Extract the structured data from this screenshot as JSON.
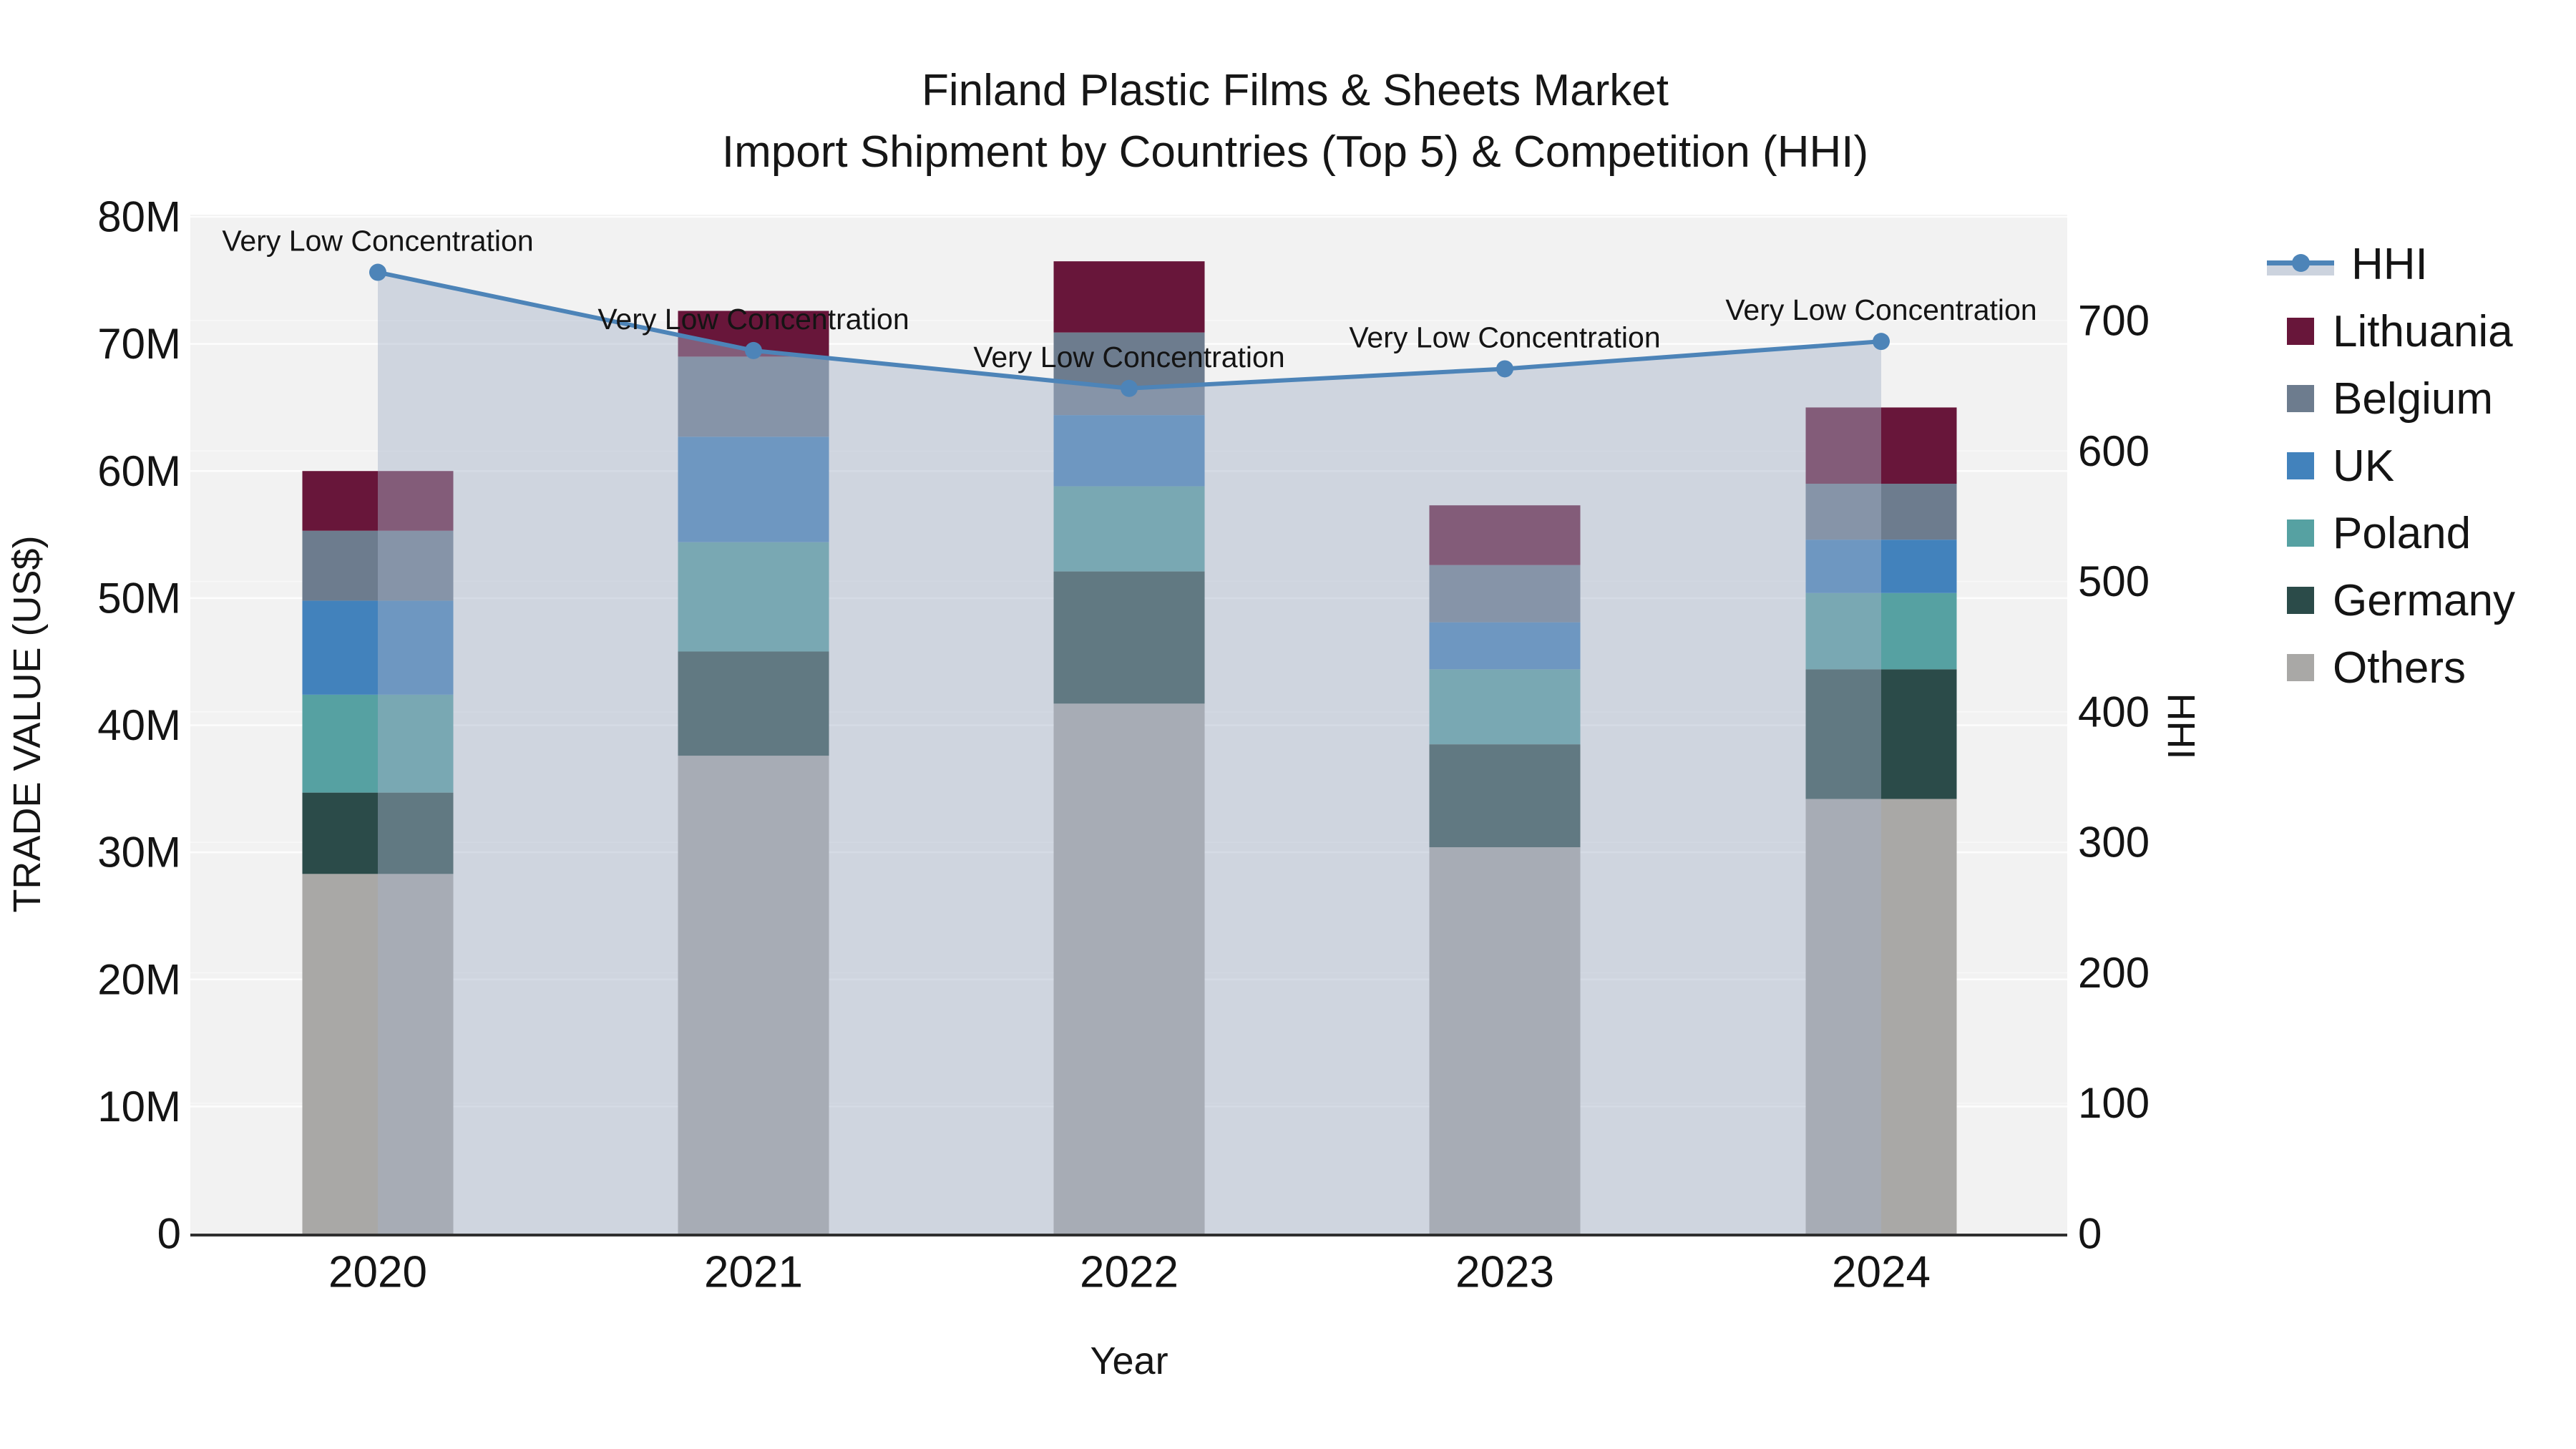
{
  "title": {
    "line1": "Finland Plastic Films & Sheets Market",
    "line2": "Import Shipment by Countries (Top 5) & Competition (HHI)"
  },
  "axes": {
    "x": {
      "title": "Year",
      "tick_labels": [
        "2020",
        "2021",
        "2022",
        "2023",
        "2024"
      ]
    },
    "y_left": {
      "title": "TRADE VALUE (US$)",
      "tick_labels": [
        "0",
        "10M",
        "20M",
        "30M",
        "40M",
        "50M",
        "60M",
        "70M",
        "80M"
      ],
      "tick_values_millions": [
        0,
        10,
        20,
        30,
        40,
        50,
        60,
        70,
        80
      ]
    },
    "y_right": {
      "title": "HHI",
      "tick_labels": [
        "0",
        "100",
        "200",
        "300",
        "400",
        "500",
        "600",
        "700"
      ],
      "tick_values": [
        0,
        100,
        200,
        300,
        400,
        500,
        600,
        700
      ]
    }
  },
  "legend": {
    "items": [
      {
        "label": "HHI",
        "marker": "line"
      },
      {
        "label": "Lithuania",
        "marker": "swatch",
        "color_key": "Lithuania"
      },
      {
        "label": "Belgium",
        "marker": "swatch",
        "color_key": "Belgium"
      },
      {
        "label": "UK",
        "marker": "swatch",
        "color_key": "UK"
      },
      {
        "label": "Poland",
        "marker": "swatch",
        "color_key": "Poland"
      },
      {
        "label": "Germany",
        "marker": "swatch",
        "color_key": "Germany"
      },
      {
        "label": "Others",
        "marker": "swatch",
        "color_key": "Others"
      }
    ]
  },
  "colors": {
    "Lithuania": "#68163a",
    "Belgium": "#6d7c8e",
    "UK": "#4282bc",
    "Poland": "#56a1a2",
    "Germany": "#2b4b49",
    "Others": "#a9a8a6",
    "hhi_line": "#4d84b8",
    "hhi_area_fill": "rgba(163,177,199,0.45)",
    "plot_background": "#f2f2f2",
    "gridline": "#ffffff",
    "axis_line": "#2f2f2f",
    "text": "#141414"
  },
  "chart_data": {
    "type": "bar",
    "subtype": "stacked-bars-with-secondary-axis-line",
    "unit": "USD millions (left axis), HHI index (right axis)",
    "title": "Finland Plastic Films & Sheets Market — Import Shipment by Countries (Top 5) & Competition (HHI)",
    "xlabel": "Year",
    "ylabel_left": "TRADE VALUE (US$)",
    "ylabel_right": "HHI",
    "ylim_left_millions": [
      0,
      80.2
    ],
    "ylim_right": [
      0,
      781
    ],
    "grid": true,
    "legend_position": "right",
    "categories": [
      2020,
      2021,
      2022,
      2023,
      2024
    ],
    "series": [
      {
        "name": "Others",
        "stack_order": 1,
        "values_millions": [
          28.3,
          37.6,
          41.7,
          30.4,
          34.2
        ]
      },
      {
        "name": "Germany",
        "stack_order": 2,
        "values_millions": [
          6.4,
          8.2,
          10.4,
          8.1,
          10.2
        ]
      },
      {
        "name": "Poland",
        "stack_order": 3,
        "values_millions": [
          7.7,
          8.6,
          6.7,
          5.9,
          6.0
        ]
      },
      {
        "name": "UK",
        "stack_order": 4,
        "values_millions": [
          7.4,
          8.3,
          5.6,
          3.7,
          4.2
        ]
      },
      {
        "name": "Belgium",
        "stack_order": 5,
        "values_millions": [
          5.5,
          6.3,
          6.5,
          4.5,
          4.4
        ]
      },
      {
        "name": "Lithuania",
        "stack_order": 6,
        "values_millions": [
          4.7,
          3.6,
          5.6,
          4.7,
          6.0
        ]
      }
    ],
    "bar_totals_millions": [
      60.0,
      72.6,
      76.5,
      57.3,
      65.0
    ],
    "line_series": {
      "name": "HHI",
      "axis": "right",
      "values": [
        737,
        677,
        648,
        663,
        684
      ],
      "area_fill_under_line": true
    },
    "annotations": [
      {
        "x": 2020,
        "text": "Very Low Concentration"
      },
      {
        "x": 2021,
        "text": "Very Low Concentration"
      },
      {
        "x": 2022,
        "text": "Very Low Concentration"
      },
      {
        "x": 2023,
        "text": "Very Low Concentration"
      },
      {
        "x": 2024,
        "text": "Very Low Concentration"
      }
    ]
  }
}
